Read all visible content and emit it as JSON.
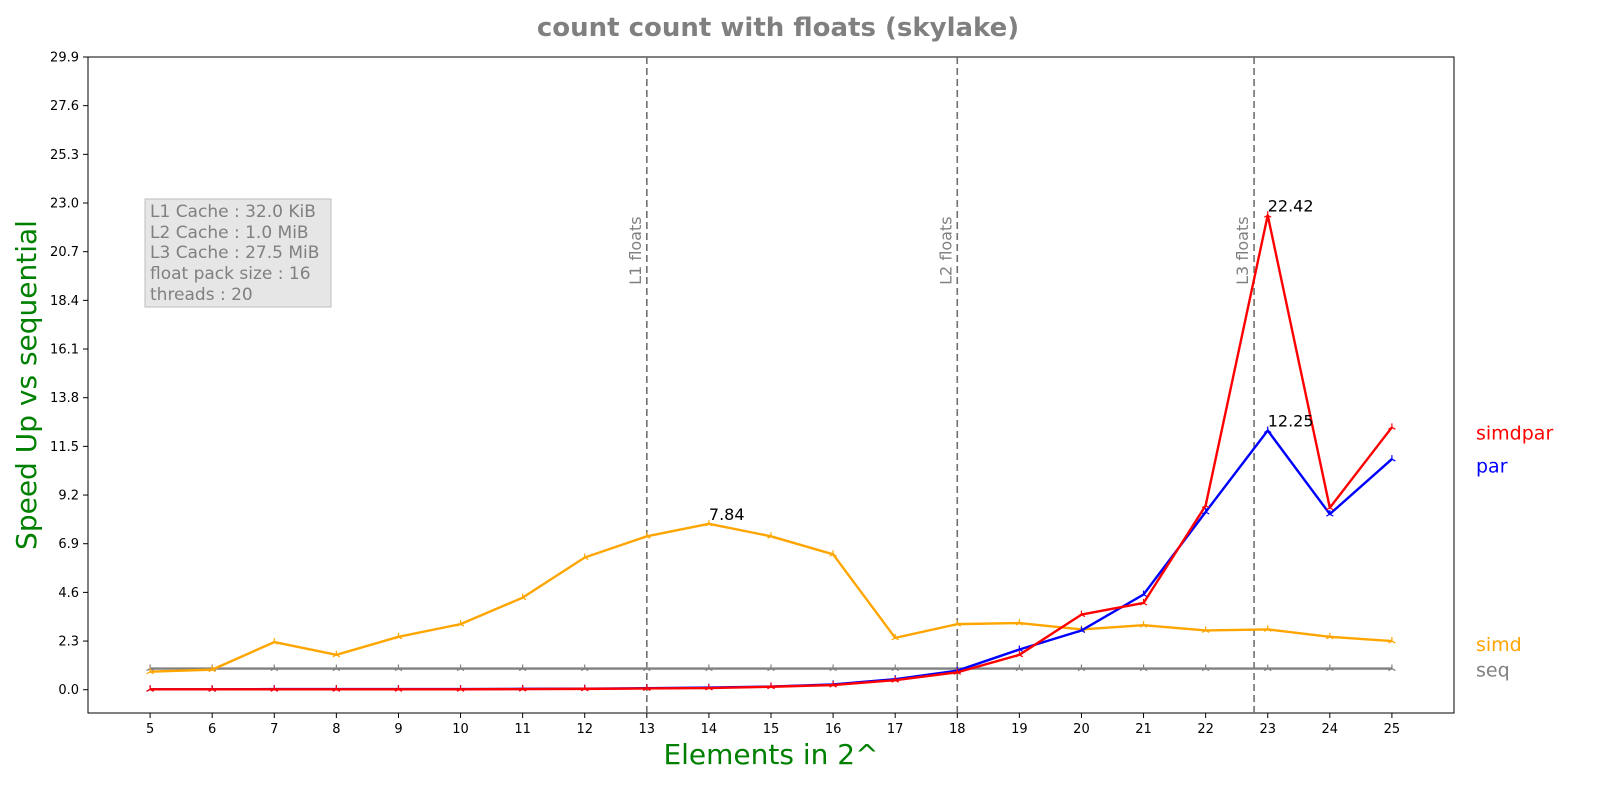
{
  "chart_data": {
    "type": "line",
    "title": "count count with floats  (skylake)",
    "xlabel": "Elements in 2^",
    "ylabel": "Speed Up vs sequential",
    "x": [
      5,
      6,
      7,
      8,
      9,
      10,
      11,
      12,
      13,
      14,
      15,
      16,
      17,
      18,
      19,
      20,
      21,
      22,
      23,
      24,
      25
    ],
    "xlim": [
      4,
      26
    ],
    "ylim": [
      -1.1,
      29.9
    ],
    "yticks": [
      "0.0",
      "2.3",
      "4.6",
      "6.9",
      "9.2",
      "11.5",
      "13.8",
      "16.1",
      "18.4",
      "20.7",
      "23.0",
      "25.3",
      "27.6",
      "29.9"
    ],
    "grid": false,
    "legend": "right side, labels next to line ends",
    "series": [
      {
        "name": "seq",
        "color": "#808080",
        "values": [
          1,
          1,
          1,
          1,
          1,
          1,
          1,
          1,
          1,
          1,
          1,
          1,
          1,
          1,
          1,
          1,
          1,
          1,
          1,
          1,
          1
        ]
      },
      {
        "name": "simd",
        "color": "#ffa500",
        "values": [
          0.85,
          0.95,
          2.25,
          1.65,
          2.5,
          3.1,
          4.35,
          6.25,
          7.25,
          7.84,
          7.25,
          6.4,
          2.45,
          3.1,
          3.15,
          2.85,
          3.05,
          2.8,
          2.85,
          2.5,
          2.3
        ]
      },
      {
        "name": "par",
        "color": "#0000ff",
        "values": [
          0.02,
          0.02,
          0.03,
          0.03,
          0.03,
          0.03,
          0.04,
          0.05,
          0.07,
          0.1,
          0.15,
          0.25,
          0.5,
          0.9,
          1.9,
          2.8,
          4.5,
          8.4,
          12.25,
          8.3,
          10.9
        ]
      },
      {
        "name": "simdpar",
        "color": "#ff0000",
        "values": [
          0.02,
          0.02,
          0.02,
          0.02,
          0.02,
          0.02,
          0.03,
          0.04,
          0.06,
          0.08,
          0.14,
          0.22,
          0.45,
          0.82,
          1.65,
          3.55,
          4.1,
          8.7,
          22.42,
          8.6,
          12.4
        ]
      }
    ],
    "vlines": [
      {
        "x": 13,
        "label": "L1 floats"
      },
      {
        "x": 18,
        "label": "L2 floats"
      },
      {
        "x": 22.78,
        "label": "L3 floats"
      }
    ],
    "annotations": [
      {
        "x": 14,
        "y": 7.84,
        "text": "7.84"
      },
      {
        "x": 23,
        "y": 22.42,
        "text": "22.42"
      },
      {
        "x": 23,
        "y": 12.25,
        "text": "12.25"
      }
    ],
    "info_box": [
      "L1 Cache : 32.0 KiB",
      "L2 Cache : 1.0 MiB",
      "L3 Cache : 27.5 MiB",
      "float pack size : 16",
      "threads : 20"
    ]
  }
}
